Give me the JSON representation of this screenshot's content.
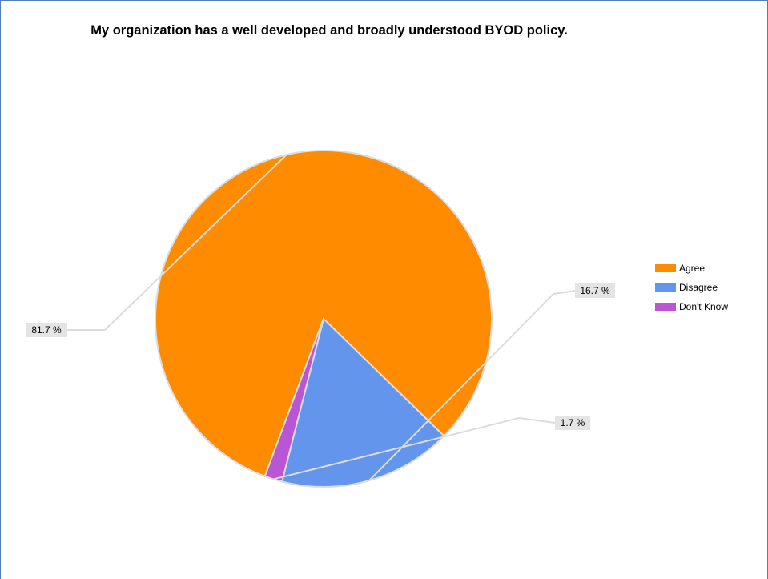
{
  "chart_data": {
    "type": "pie",
    "title": "My organization has a well developed and broadly understood BYOD policy.",
    "slices": [
      {
        "name": "Agree",
        "value": 81.7,
        "label": "81.7 %",
        "color": "#ff8c00"
      },
      {
        "name": "Disagree",
        "value": 16.7,
        "label": "16.7 %",
        "color": "#6495ed"
      },
      {
        "name": "Don't Know",
        "value": 1.7,
        "label": "1.7 %",
        "color": "#ba55d3"
      }
    ],
    "legend_position": "right"
  }
}
